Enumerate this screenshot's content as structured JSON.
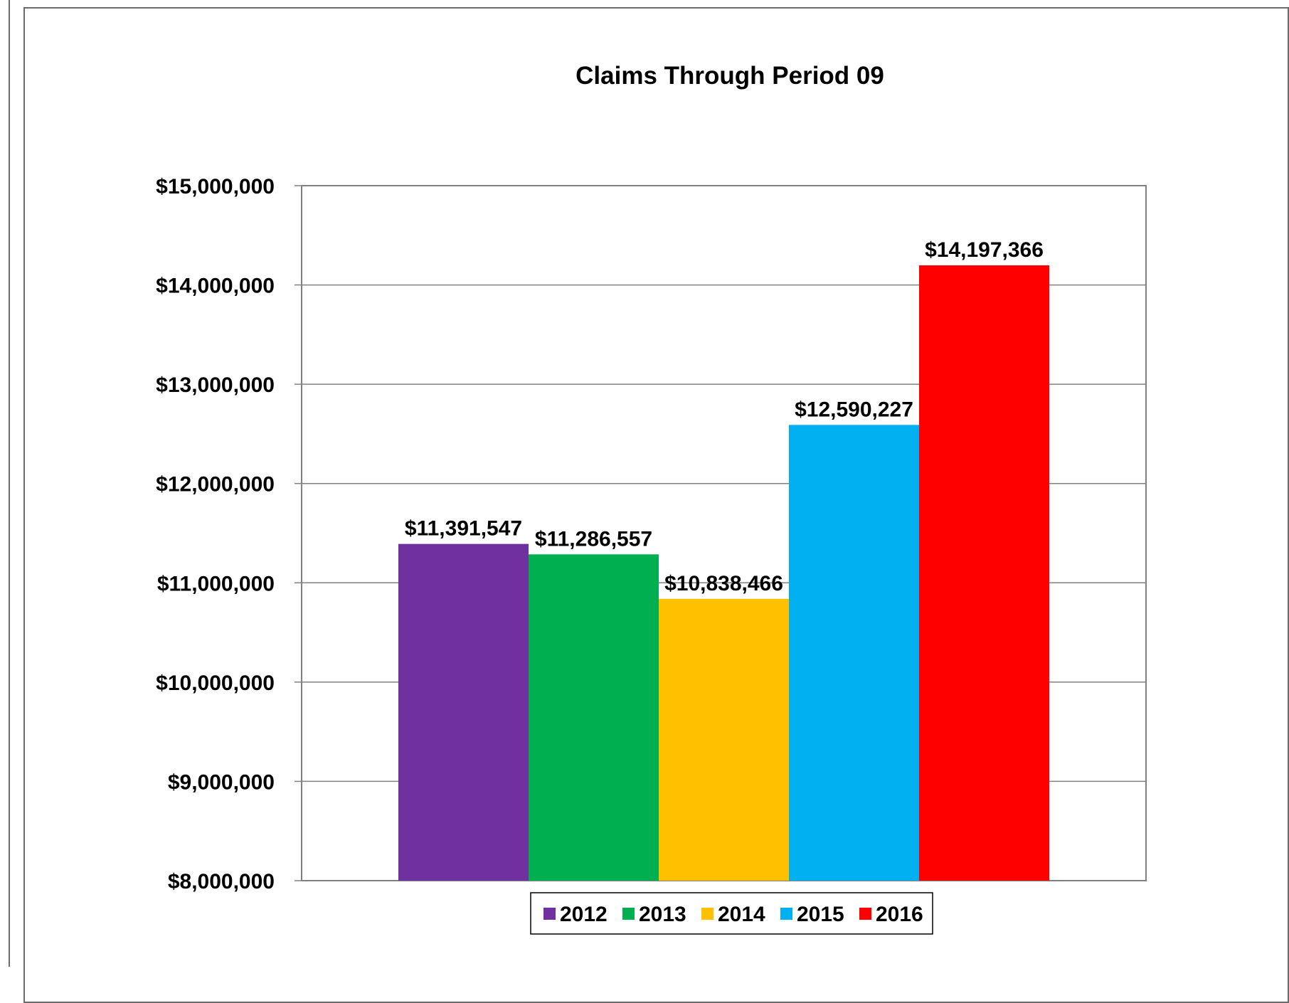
{
  "chart_data": {
    "type": "bar",
    "title": "Claims Through Period 09",
    "xlabel": "",
    "ylabel": "",
    "ylim": [
      8000000,
      15000000
    ],
    "y_ticks": [
      8000000,
      9000000,
      10000000,
      11000000,
      12000000,
      13000000,
      14000000,
      15000000
    ],
    "y_tick_labels": [
      "$8,000,000",
      "$9,000,000",
      "$10,000,000",
      "$11,000,000",
      "$12,000,000",
      "$13,000,000",
      "$14,000,000",
      "$15,000,000"
    ],
    "grid": true,
    "legend_position": "bottom",
    "series": [
      {
        "name": "2012",
        "value": 11391547,
        "label": "$11,391,547",
        "color": "#7030A0"
      },
      {
        "name": "2013",
        "value": 11286557,
        "label": "$11,286,557",
        "color": "#00B050"
      },
      {
        "name": "2014",
        "value": 10838466,
        "label": "$10,838,466",
        "color": "#FFC000"
      },
      {
        "name": "2015",
        "value": 12590227,
        "label": "$12,590,227",
        "color": "#00B0F0"
      },
      {
        "name": "2016",
        "value": 14197366,
        "label": "$14,197,366",
        "color": "#FF0000"
      }
    ]
  }
}
